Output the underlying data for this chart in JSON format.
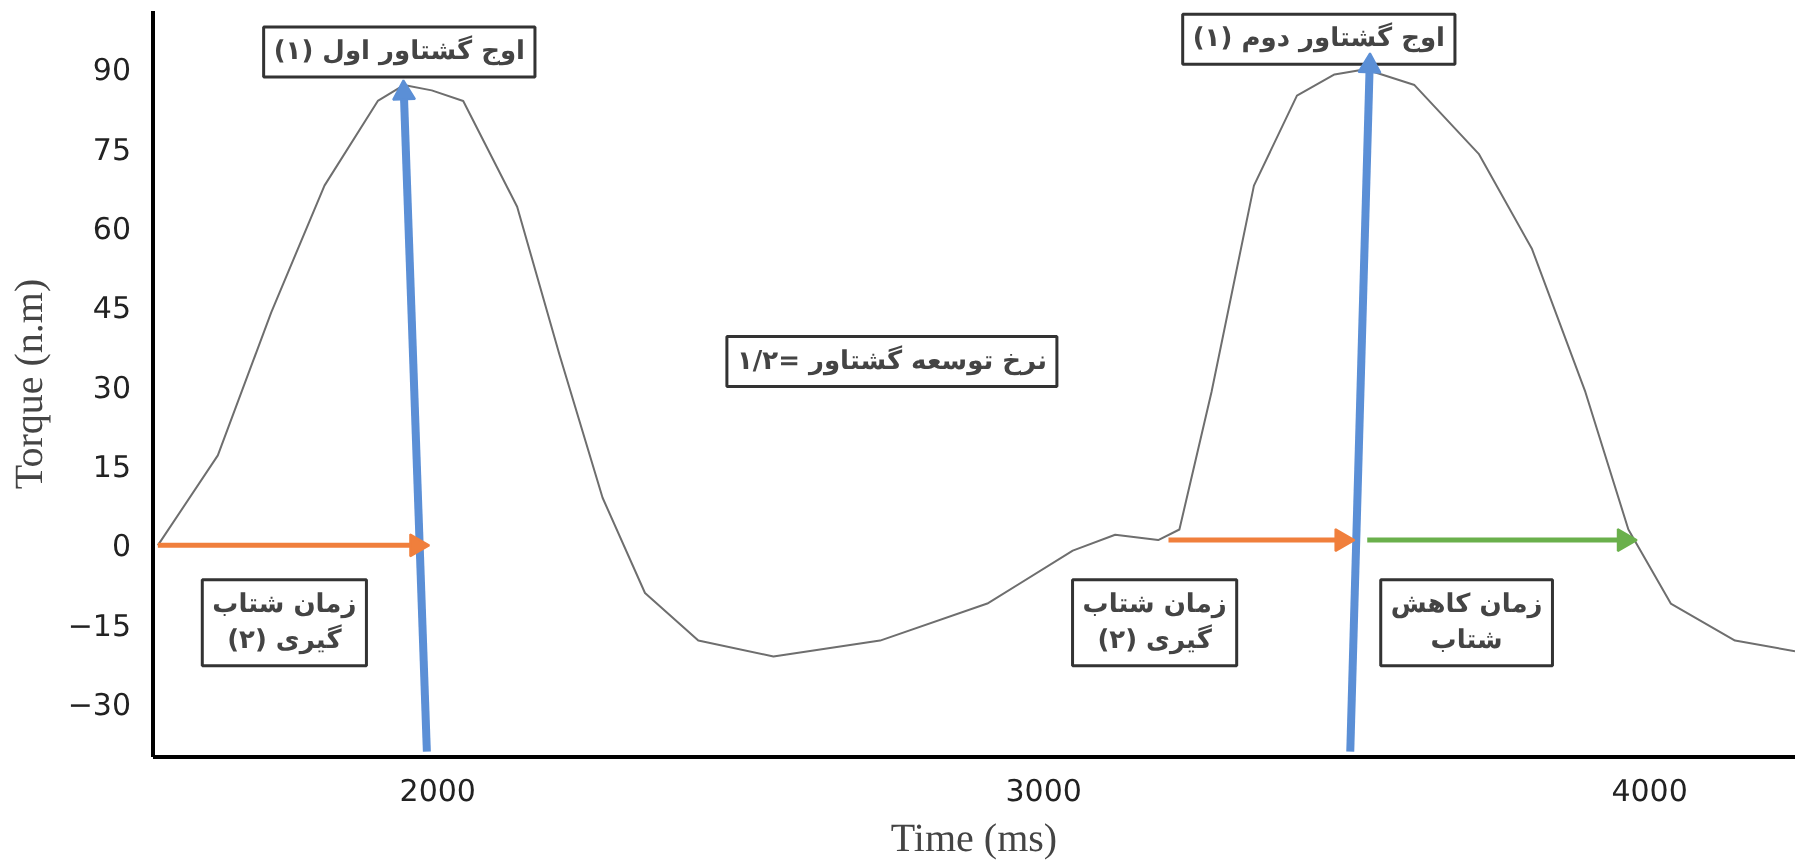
{
  "chart_data": {
    "type": "line",
    "xlabel": "Time (ms)",
    "ylabel": "Torque (n.m)",
    "xlim": [
      1530,
      4240
    ],
    "ylim": [
      -40,
      101
    ],
    "xticks": [
      2000,
      3000,
      4000
    ],
    "yticks": [
      -30,
      -15,
      0,
      15,
      30,
      45,
      60,
      75,
      90
    ],
    "grid": false,
    "line_style": "solid",
    "series": [
      {
        "color": "#6e6e6e",
        "x": [
          1538,
          1637,
          1725,
          1813,
          1901,
          1944,
          1990,
          2042,
          2131,
          2201,
          2272,
          2342,
          2430,
          2554,
          2730,
          2907,
          3048,
          3118,
          3189,
          3224,
          3277,
          3347,
          3418,
          3480,
          3531,
          3612,
          3718,
          3806,
          3894,
          3965,
          4035,
          4141,
          4240
        ],
        "values": [
          0,
          17,
          44,
          68,
          84,
          87,
          86,
          84,
          64,
          36,
          9,
          -9,
          -18,
          -21,
          -18,
          -11,
          -1,
          2,
          1,
          3,
          29,
          68,
          85,
          89,
          90,
          87,
          74,
          56,
          29,
          3,
          -11,
          -18,
          -20
        ]
      },
      {
        "color": "#5b8fd6",
        "marker": "triangle",
        "x": [
          1982,
          1944
        ],
        "values": [
          -39,
          85.5
        ]
      },
      {
        "color": "#5b8fd6",
        "marker": "triangle",
        "x": [
          3506,
          3538
        ],
        "values": [
          -39,
          90.6
        ]
      },
      {
        "color": "#f07f3c",
        "marker": "triangle",
        "x": [
          1538,
          1965
        ],
        "values": [
          0,
          0
        ]
      },
      {
        "color": "#f07f3c",
        "marker": "triangle",
        "x": [
          3206,
          3492
        ],
        "values": [
          1,
          1
        ]
      },
      {
        "color": "#6ab04c",
        "marker": "triangle",
        "x": [
          3534,
          3958
        ],
        "values": [
          1,
          1
        ]
      }
    ],
    "annotations": [
      "اوج گشتاور اول (۱)",
      "اوج گشتاور دوم (۱)",
      "۱/۲= نرخ توسعه گشتاور",
      "زمان شتاب\nگیری (۲)",
      "زمان شتاب\nگیری (۲)",
      "زمان کاهش\nشتاب"
    ]
  }
}
